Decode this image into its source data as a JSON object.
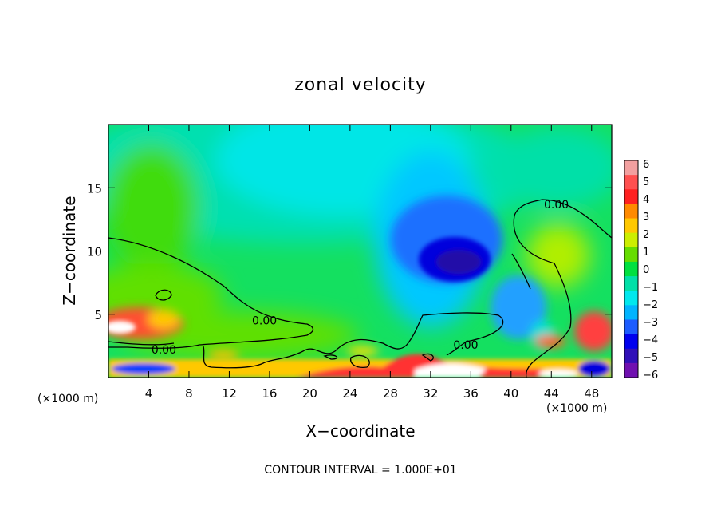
{
  "chart_data": {
    "type": "heatmap",
    "title": "zonal velocity",
    "xlabel": "X−coordinate",
    "ylabel": "Z−coordinate",
    "x_unit_left": "(×1000 m)",
    "x_unit_right": "(×1000 m)",
    "xlim": [
      0,
      50
    ],
    "ylim": [
      0,
      20
    ],
    "x_ticks": [
      4,
      8,
      12,
      16,
      20,
      24,
      28,
      32,
      36,
      40,
      44,
      48
    ],
    "y_ticks": [
      5,
      10,
      15
    ],
    "colorbar": {
      "levels": [
        6,
        5,
        4,
        3,
        2,
        1,
        0,
        -1,
        -2,
        -3,
        -4,
        -5,
        -6
      ],
      "tick_labels": [
        "6",
        "5",
        "4",
        "3",
        "2",
        "1",
        "0",
        "−1",
        "−2",
        "−3",
        "−4",
        "−5",
        "−6"
      ],
      "colors": [
        "#f2a0a0",
        "#ff5050",
        "#ff2020",
        "#ff8a00",
        "#ffc800",
        "#ccee00",
        "#66dd00",
        "#00e040",
        "#00e0a8",
        "#00e8ee",
        "#00b4ff",
        "#1c5cff",
        "#0000ee",
        "#3010b8",
        "#7010b0"
      ]
    },
    "contour_labels": [
      {
        "text": "0.00",
        "x": 15.5,
        "z": 4.5
      },
      {
        "text": "0.00",
        "x": 5.5,
        "z": 2.2
      },
      {
        "text": "0.00",
        "x": 35.5,
        "z": 2.6
      },
      {
        "text": "0.00",
        "x": 44.5,
        "z": 13.7
      }
    ],
    "footer": "CONTOUR INTERVAL = 1.000E+01"
  }
}
